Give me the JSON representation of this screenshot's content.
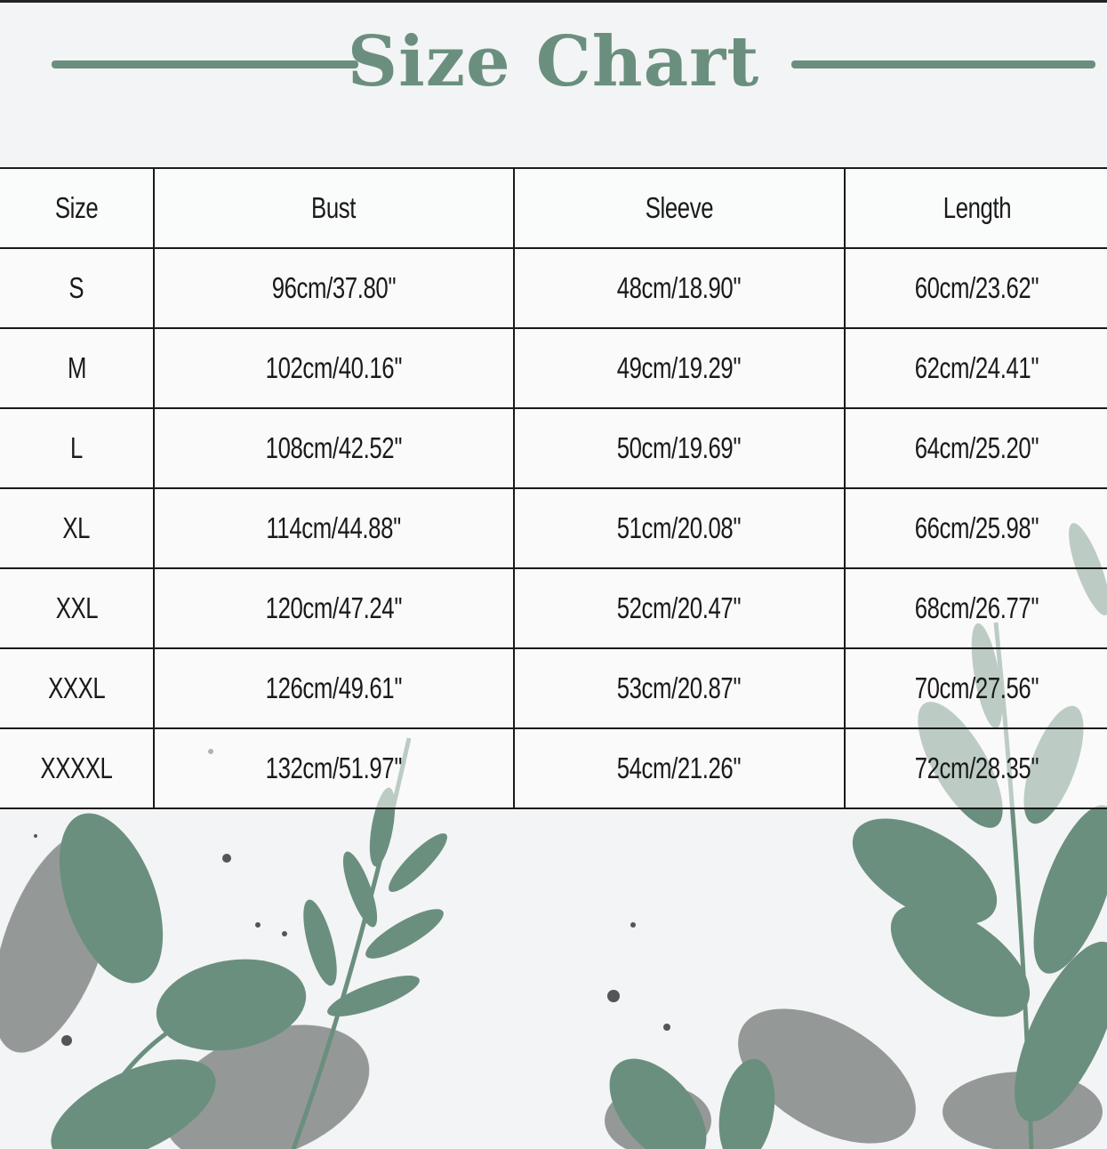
{
  "title": "Size Chart",
  "colors": {
    "accent": "#6b8f7e",
    "leaf_gray": "#8a8f8e",
    "border": "#1a1a1a"
  },
  "table": {
    "headers": [
      "Size",
      "Bust",
      "Sleeve",
      "Length"
    ],
    "rows": [
      [
        "S",
        "96cm/37.80''",
        "48cm/18.90''",
        "60cm/23.62''"
      ],
      [
        "M",
        "102cm/40.16''",
        "49cm/19.29''",
        "62cm/24.41''"
      ],
      [
        "L",
        "108cm/42.52''",
        "50cm/19.69''",
        "64cm/25.20''"
      ],
      [
        "XL",
        "114cm/44.88''",
        "51cm/20.08''",
        "66cm/25.98''"
      ],
      [
        "XXL",
        "120cm/47.24''",
        "52cm/20.47''",
        "68cm/26.77''"
      ],
      [
        "XXXL",
        "126cm/49.61''",
        "53cm/20.87''",
        "70cm/27.56''"
      ],
      [
        "XXXXL",
        "132cm/51.97''",
        "54cm/21.26''",
        "72cm/28.35''"
      ]
    ]
  }
}
